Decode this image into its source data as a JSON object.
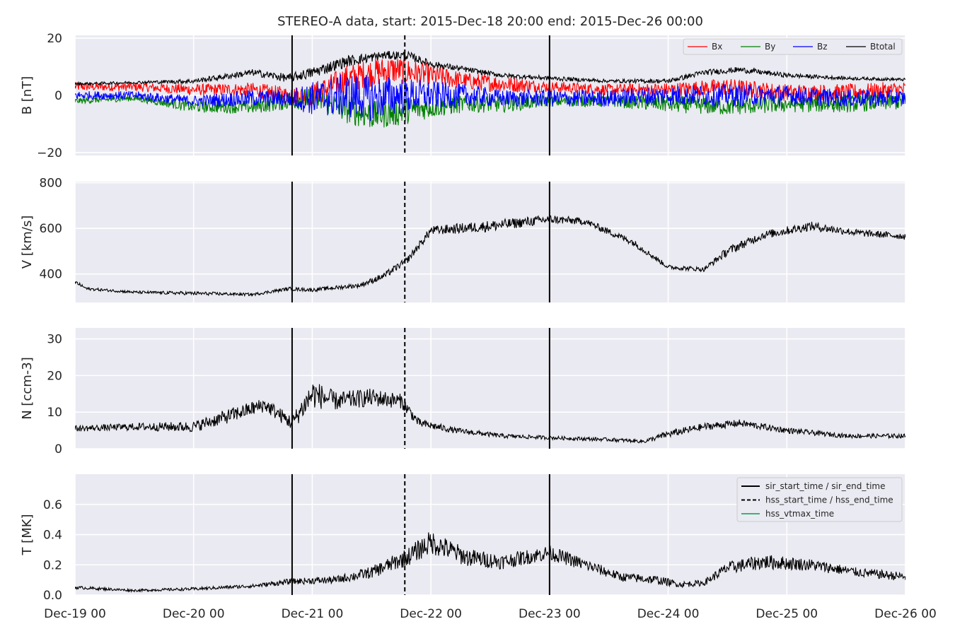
{
  "title": "STEREO-A data, start: 2015-Dec-18 20:00  end: 2015-Dec-26 00:00",
  "x_axis": {
    "range": [
      0,
      7.0
    ],
    "units": "days since Dec-19 00",
    "ticks": [
      {
        "v": 0,
        "label": "Dec-19 00"
      },
      {
        "v": 1,
        "label": "Dec-20 00"
      },
      {
        "v": 2,
        "label": "Dec-21 00"
      },
      {
        "v": 3,
        "label": "Dec-22 00"
      },
      {
        "v": 4,
        "label": "Dec-23 00"
      },
      {
        "v": 5,
        "label": "Dec-24 00"
      },
      {
        "v": 6,
        "label": "Dec-25 00"
      },
      {
        "v": 7,
        "label": "Dec-26 00"
      }
    ]
  },
  "vlines": [
    {
      "x": 1.83,
      "style": "solid",
      "legend": "sir_start_time / sir_end_time"
    },
    {
      "x": 2.78,
      "style": "dashed",
      "legend": "hss_start_time / hss_end_time"
    },
    {
      "x": 4.0,
      "style": "solid",
      "legend": "sir_start_time / sir_end_time"
    }
  ],
  "legend_panel4": [
    {
      "label": "sir_start_time / sir_end_time",
      "color": "#000000",
      "style": "solid"
    },
    {
      "label": "hss_start_time / hss_end_time",
      "color": "#000000",
      "style": "dashed"
    },
    {
      "label": "hss_vtmax_time",
      "color": "#3cb371",
      "style": "solid"
    }
  ],
  "chart_data": [
    {
      "type": "line",
      "ylabel": "B [nT]",
      "ylim": [
        -21,
        21
      ],
      "yticks": [
        {
          "v": -20,
          "label": "−20"
        },
        {
          "v": 0,
          "label": "0"
        },
        {
          "v": 20,
          "label": "20"
        }
      ],
      "legend_placement": "top-right",
      "series": [
        {
          "name": "Bx",
          "color": "#ff0000",
          "x": [
            0,
            0.5,
            1.0,
            1.5,
            1.8,
            2.0,
            2.3,
            2.5,
            2.7,
            3.0,
            3.3,
            3.6,
            4.0,
            4.5,
            5.0,
            5.5,
            6.0,
            6.5,
            7.0
          ],
          "y": [
            3,
            3,
            2,
            2,
            0,
            0,
            6,
            8,
            9,
            7,
            5,
            4,
            3,
            2,
            2,
            3,
            1,
            1,
            2
          ],
          "jitter": [
            1.5,
            1.5,
            2,
            2.5,
            3,
            4,
            5,
            5,
            5,
            4,
            3,
            3,
            2,
            2,
            2.5,
            3,
            3,
            3,
            3
          ]
        },
        {
          "name": "By",
          "color": "#008000",
          "x": [
            0,
            0.5,
            1.0,
            1.5,
            1.8,
            2.0,
            2.3,
            2.5,
            2.7,
            3.0,
            3.3,
            3.6,
            4.0,
            4.5,
            5.0,
            5.5,
            6.0,
            6.5,
            7.0
          ],
          "y": [
            -2,
            -1,
            -4,
            -4,
            -2,
            -1,
            -5,
            -7,
            -6,
            -4,
            -3,
            -3,
            -2,
            -2,
            -3,
            -4,
            -3,
            -3,
            -2
          ],
          "jitter": [
            1,
            1,
            2,
            2.5,
            3,
            4,
            5,
            5,
            5,
            4,
            3,
            3,
            2,
            2,
            3,
            3,
            3,
            3,
            3
          ]
        },
        {
          "name": "Bz",
          "color": "#0000ff",
          "x": [
            0,
            0.5,
            1.0,
            1.5,
            1.8,
            2.0,
            2.3,
            2.5,
            2.7,
            3.0,
            3.3,
            3.6,
            4.0,
            4.5,
            5.0,
            5.5,
            6.0,
            6.5,
            7.0
          ],
          "y": [
            0,
            0,
            -2,
            -1,
            -1,
            -1,
            0,
            -1,
            0,
            0,
            0,
            -1,
            -1,
            -1,
            0,
            0,
            0,
            -1,
            -1
          ],
          "jitter": [
            1.5,
            1.5,
            2,
            3,
            3,
            6,
            8,
            8,
            7,
            5,
            4,
            3,
            3,
            3,
            3.5,
            4,
            3.5,
            3,
            3
          ]
        },
        {
          "name": "Btotal",
          "color": "#000000",
          "x": [
            0,
            0.5,
            1.0,
            1.5,
            1.8,
            2.0,
            2.3,
            2.6,
            2.8,
            3.0,
            3.3,
            3.6,
            4.0,
            4.5,
            5.0,
            5.3,
            5.6,
            6.0,
            6.5,
            7.0
          ],
          "y": [
            4,
            4.5,
            5,
            8,
            6,
            8,
            12,
            14,
            14,
            11,
            9,
            7,
            6,
            5,
            5,
            8,
            9,
            7,
            6,
            5.5
          ],
          "jitter": [
            0.5,
            0.5,
            0.8,
            1.2,
            1.5,
            2,
            2,
            1.5,
            1.5,
            1.2,
            1,
            0.8,
            0.8,
            0.6,
            0.8,
            1,
            1,
            0.8,
            0.6,
            0.5
          ]
        }
      ]
    },
    {
      "type": "line",
      "ylabel": "V [km/s]",
      "ylim": [
        275,
        805
      ],
      "yticks": [
        {
          "v": 400,
          "label": "400"
        },
        {
          "v": 600,
          "label": "600"
        },
        {
          "v": 800,
          "label": "800"
        }
      ],
      "series": [
        {
          "name": "",
          "color": "#000000",
          "x": [
            0,
            0.1,
            0.5,
            1.0,
            1.5,
            1.8,
            2.0,
            2.4,
            2.6,
            2.8,
            3.0,
            3.5,
            4.0,
            4.3,
            4.7,
            5.0,
            5.3,
            5.5,
            5.8,
            6.2,
            6.6,
            7.0
          ],
          "y": [
            365,
            335,
            320,
            315,
            310,
            335,
            330,
            350,
            390,
            460,
            590,
            610,
            640,
            630,
            540,
            430,
            420,
            500,
            570,
            610,
            580,
            565
          ],
          "jitter": [
            8,
            6,
            6,
            8,
            6,
            8,
            8,
            10,
            15,
            15,
            20,
            25,
            20,
            15,
            15,
            10,
            10,
            20,
            18,
            20,
            15,
            15
          ]
        }
      ]
    },
    {
      "type": "line",
      "ylabel": "N [ccm-3]",
      "ylim": [
        0,
        33
      ],
      "yticks": [
        {
          "v": 0,
          "label": "0"
        },
        {
          "v": 10,
          "label": "10"
        },
        {
          "v": 20,
          "label": "20"
        },
        {
          "v": 30,
          "label": "30"
        }
      ],
      "series": [
        {
          "name": "",
          "color": "#000000",
          "x": [
            0,
            0.5,
            1.0,
            1.3,
            1.6,
            1.83,
            2.0,
            2.2,
            2.5,
            2.75,
            2.9,
            3.2,
            3.6,
            4.0,
            4.5,
            4.8,
            5.0,
            5.3,
            5.6,
            6.0,
            6.5,
            7.0
          ],
          "y": [
            5.5,
            6,
            6,
            9,
            12,
            7,
            15,
            13,
            14,
            13,
            7,
            5,
            3.5,
            3,
            2.5,
            2,
            4,
            6,
            7,
            5,
            3.5,
            3.5
          ],
          "jitter": [
            0.8,
            1,
            1.5,
            2,
            2,
            2,
            4,
            2.5,
            2.5,
            2,
            1.2,
            0.8,
            0.6,
            0.5,
            0.5,
            0.5,
            1,
            1,
            1,
            0.8,
            0.6,
            0.6
          ]
        }
      ]
    },
    {
      "type": "line",
      "ylabel": "T [MK]",
      "ylim": [
        0,
        0.8
      ],
      "yticks": [
        {
          "v": 0,
          "label": "0.0"
        },
        {
          "v": 0.2,
          "label": "0.2"
        },
        {
          "v": 0.4,
          "label": "0.4"
        },
        {
          "v": 0.6,
          "label": "0.6"
        }
      ],
      "legend_placement": "top-right",
      "series": [
        {
          "name": "",
          "color": "#000000",
          "x": [
            0,
            0.5,
            1.0,
            1.5,
            1.83,
            2.2,
            2.5,
            2.8,
            3.0,
            3.3,
            3.6,
            4.0,
            4.3,
            4.6,
            4.9,
            5.1,
            5.3,
            5.5,
            5.8,
            6.2,
            6.6,
            7.0
          ],
          "y": [
            0.05,
            0.03,
            0.04,
            0.06,
            0.09,
            0.1,
            0.15,
            0.25,
            0.35,
            0.25,
            0.22,
            0.28,
            0.2,
            0.12,
            0.1,
            0.07,
            0.08,
            0.18,
            0.22,
            0.2,
            0.15,
            0.12
          ],
          "jitter": [
            0.01,
            0.008,
            0.01,
            0.012,
            0.02,
            0.025,
            0.04,
            0.06,
            0.08,
            0.06,
            0.05,
            0.05,
            0.04,
            0.03,
            0.03,
            0.02,
            0.02,
            0.04,
            0.05,
            0.04,
            0.03,
            0.03
          ]
        }
      ]
    }
  ]
}
